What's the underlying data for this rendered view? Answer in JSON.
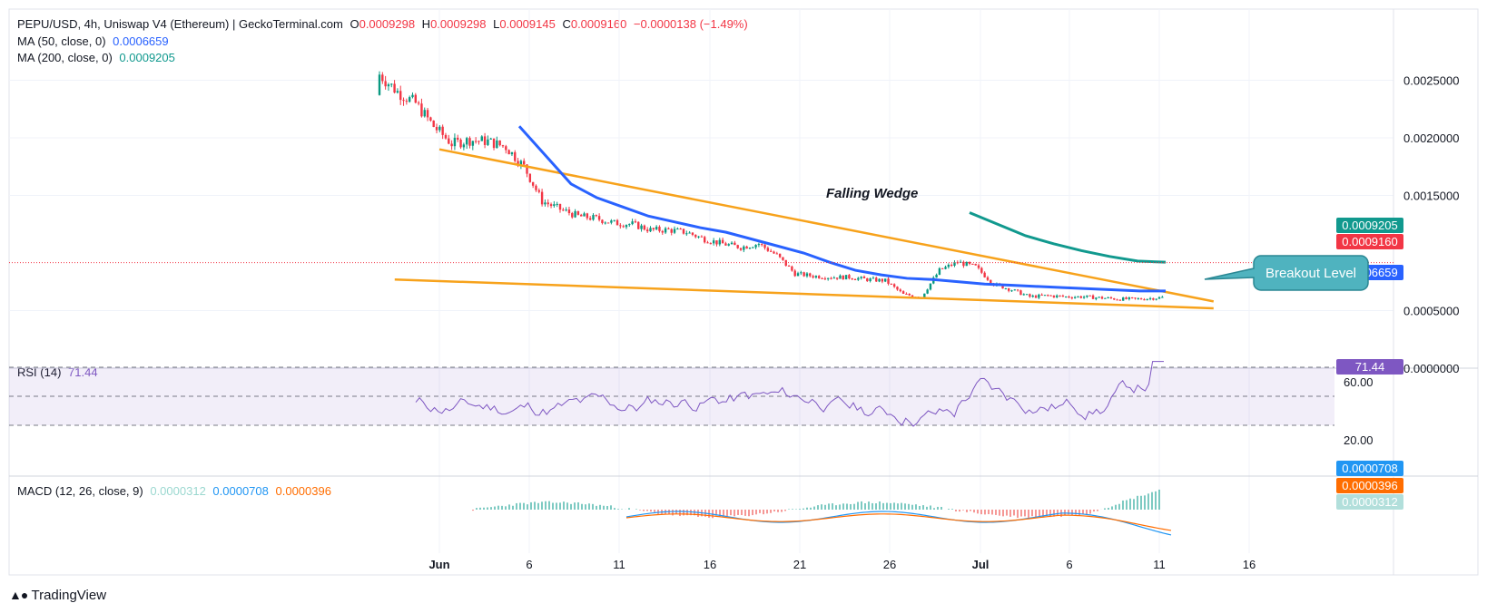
{
  "header": {
    "symbol_line": "PEPU/USD, 4h, Uniswap V4 (Ethereum) | GeckoTerminal.com",
    "open_label": "O",
    "open": "0.0009298",
    "high_label": "H",
    "high": "0.0009298",
    "low_label": "L",
    "low": "0.0009145",
    "close_label": "C",
    "close": "0.0009160",
    "change": "−0.0000138 (−1.49%)"
  },
  "indicators": {
    "ma50_label": "MA (50, close, 0)",
    "ma50_value": "0.0006659",
    "ma200_label": "MA (200, close, 0)",
    "ma200_value": "0.0009205",
    "rsi_label": "RSI (14)",
    "rsi_value": "71.44",
    "macd_label": "MACD (12, 26, close, 9)",
    "macd_hist": "0.0000312",
    "macd_line": "0.0000708",
    "macd_signal": "0.0000396"
  },
  "annotations": {
    "pattern": "Falling Wedge",
    "callout": "Breakout Level"
  },
  "branding": "TradingView",
  "colors": {
    "up": "#089981",
    "down": "#f23645",
    "ma50": "#2962ff",
    "ma200": "#11998e",
    "wedge": "#f7a21b",
    "rsi": "#7e57c2",
    "macd": "#2196f3",
    "signal": "#ff6d00",
    "callout": "#4fb3bf"
  },
  "chart_data": [
    {
      "type": "line",
      "title": "PEPU/USD",
      "x_ticks": [
        "Jun",
        "6",
        "11",
        "16",
        "21",
        "26",
        "Jul",
        "6",
        "11",
        "16"
      ],
      "y_ticks": [
        "0.0025000",
        "0.0020000",
        "0.0015000",
        "0.0005000",
        "0.0000000"
      ],
      "ylim": [
        0,
        0.0027
      ],
      "price_tags": [
        {
          "label": "0.0009205",
          "series": "MA (200, close, 0)"
        },
        {
          "label": "0.0009160",
          "series": "close"
        },
        {
          "label": "0.0006659",
          "series": "MA (50, close, 0)"
        }
      ],
      "close_approx": {
        "x_days": [
          0,
          1,
          2,
          3,
          4,
          5,
          6,
          7,
          8,
          9,
          10,
          11,
          12,
          13,
          14,
          15,
          16,
          17,
          18,
          19,
          20,
          21,
          22,
          23,
          24,
          25,
          26,
          27,
          28,
          29,
          30,
          31,
          32,
          33,
          34,
          35,
          36,
          37,
          38,
          39,
          40,
          41,
          42,
          43,
          44,
          45,
          46,
          47,
          48,
          49,
          50
        ],
        "y": [
          0.00255,
          0.0024,
          0.0023,
          0.0021,
          0.00195,
          0.00198,
          0.00197,
          0.00192,
          0.00175,
          0.00145,
          0.00138,
          0.00132,
          0.0013,
          0.00126,
          0.00125,
          0.0012,
          0.0012,
          0.00118,
          0.00112,
          0.00108,
          0.00105,
          0.00108,
          0.00098,
          0.00082,
          0.0008,
          0.00079,
          0.00079,
          0.00077,
          0.00076,
          0.00064,
          0.00062,
          0.00085,
          0.00092,
          0.00088,
          0.00073,
          0.00068,
          0.00062,
          0.00063,
          0.00062,
          0.00062,
          0.00061,
          0.0006,
          0.0006,
          0.00061,
          0.00062,
          0.00062,
          0.00062,
          0.00063,
          0.00064,
          0.0009,
          0.00092
        ]
      },
      "ma50_approx": [
        0.0021,
        0.00185,
        0.0016,
        0.00148,
        0.0014,
        0.00132,
        0.00127,
        0.00122,
        0.00118,
        0.00112,
        0.00106,
        0.001,
        0.00092,
        0.00085,
        0.00081,
        0.00078,
        0.00077,
        0.00075,
        0.00073,
        0.00072,
        0.00071,
        0.0007,
        0.00069,
        0.00068,
        0.00067,
        0.00067
      ],
      "ma200_approx": [
        0.00135,
        0.00125,
        0.00115,
        0.00108,
        0.00102,
        0.00097,
        0.00093,
        0.00092
      ],
      "wedge": {
        "upper": [
          [
            0,
            0.0019
          ],
          [
            52,
            0.00058
          ]
        ],
        "lower": [
          [
            -3,
            0.00077
          ],
          [
            52,
            0.00052
          ]
        ]
      }
    },
    {
      "type": "line",
      "title": "RSI (14)",
      "y_ticks": [
        "60.00",
        "20.00"
      ],
      "levels": [
        70,
        50,
        30
      ],
      "value_tag": "71.44"
    },
    {
      "type": "bar",
      "title": "MACD (12, 26, close, 9)",
      "value_tags": [
        "0.0000708",
        "0.0000396",
        "0.0000312"
      ]
    }
  ]
}
